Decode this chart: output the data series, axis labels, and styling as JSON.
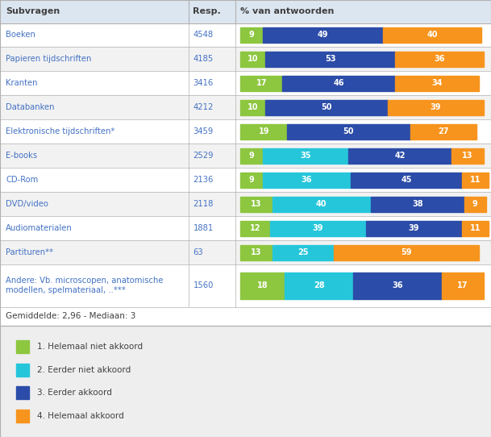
{
  "rows": [
    {
      "label": "Boeken",
      "resp": "4548",
      "v": [
        9,
        0,
        49,
        40
      ]
    },
    {
      "label": "Papieren tijdschriften",
      "resp": "4185",
      "v": [
        10,
        0,
        53,
        36
      ]
    },
    {
      "label": "Kranten",
      "resp": "3416",
      "v": [
        17,
        0,
        46,
        34
      ]
    },
    {
      "label": "Databanken",
      "resp": "4212",
      "v": [
        10,
        0,
        50,
        39
      ]
    },
    {
      "label": "Elektronische tijdschriften*",
      "resp": "3459",
      "v": [
        19,
        0,
        50,
        27
      ]
    },
    {
      "label": "E-books",
      "resp": "2529",
      "v": [
        9,
        35,
        42,
        13
      ]
    },
    {
      "label": "CD-Rom",
      "resp": "2136",
      "v": [
        9,
        36,
        45,
        11
      ]
    },
    {
      "label": "DVD/video",
      "resp": "2118",
      "v": [
        13,
        40,
        38,
        9
      ]
    },
    {
      "label": "Audiomaterialen",
      "resp": "1881",
      "v": [
        12,
        39,
        39,
        11
      ]
    },
    {
      "label": "Partituren**",
      "resp": "63",
      "v": [
        13,
        25,
        0,
        59
      ]
    },
    {
      "label": "Andere: Vb. microscopen, anatomische\nmodellen, spelmateriaal, ..***",
      "resp": "1560",
      "v": [
        18,
        28,
        36,
        17
      ]
    }
  ],
  "colors": [
    "#8dc63f",
    "#26c6da",
    "#2b4ca8",
    "#f7941d"
  ],
  "legend_labels": [
    "1. Helemaal niet akkoord",
    "2. Eerder niet akkoord",
    "3. Eerder akkoord",
    "4. Helemaal akkoord"
  ],
  "col_subvragen": "Subvragen",
  "col_resp": "Resp.",
  "col_pct": "% van antwoorden",
  "footer": "Gemiddelde: 2,96 - Mediaan: 3",
  "header_bg": "#dce6f1",
  "row_bg_even": "#ffffff",
  "row_bg_odd": "#f2f2f2",
  "grid_color": "#b0b0b0",
  "legend_bg": "#eeeeee",
  "text_color": "#404040",
  "label_color": "#4472c4",
  "resp_color": "#4472c4"
}
